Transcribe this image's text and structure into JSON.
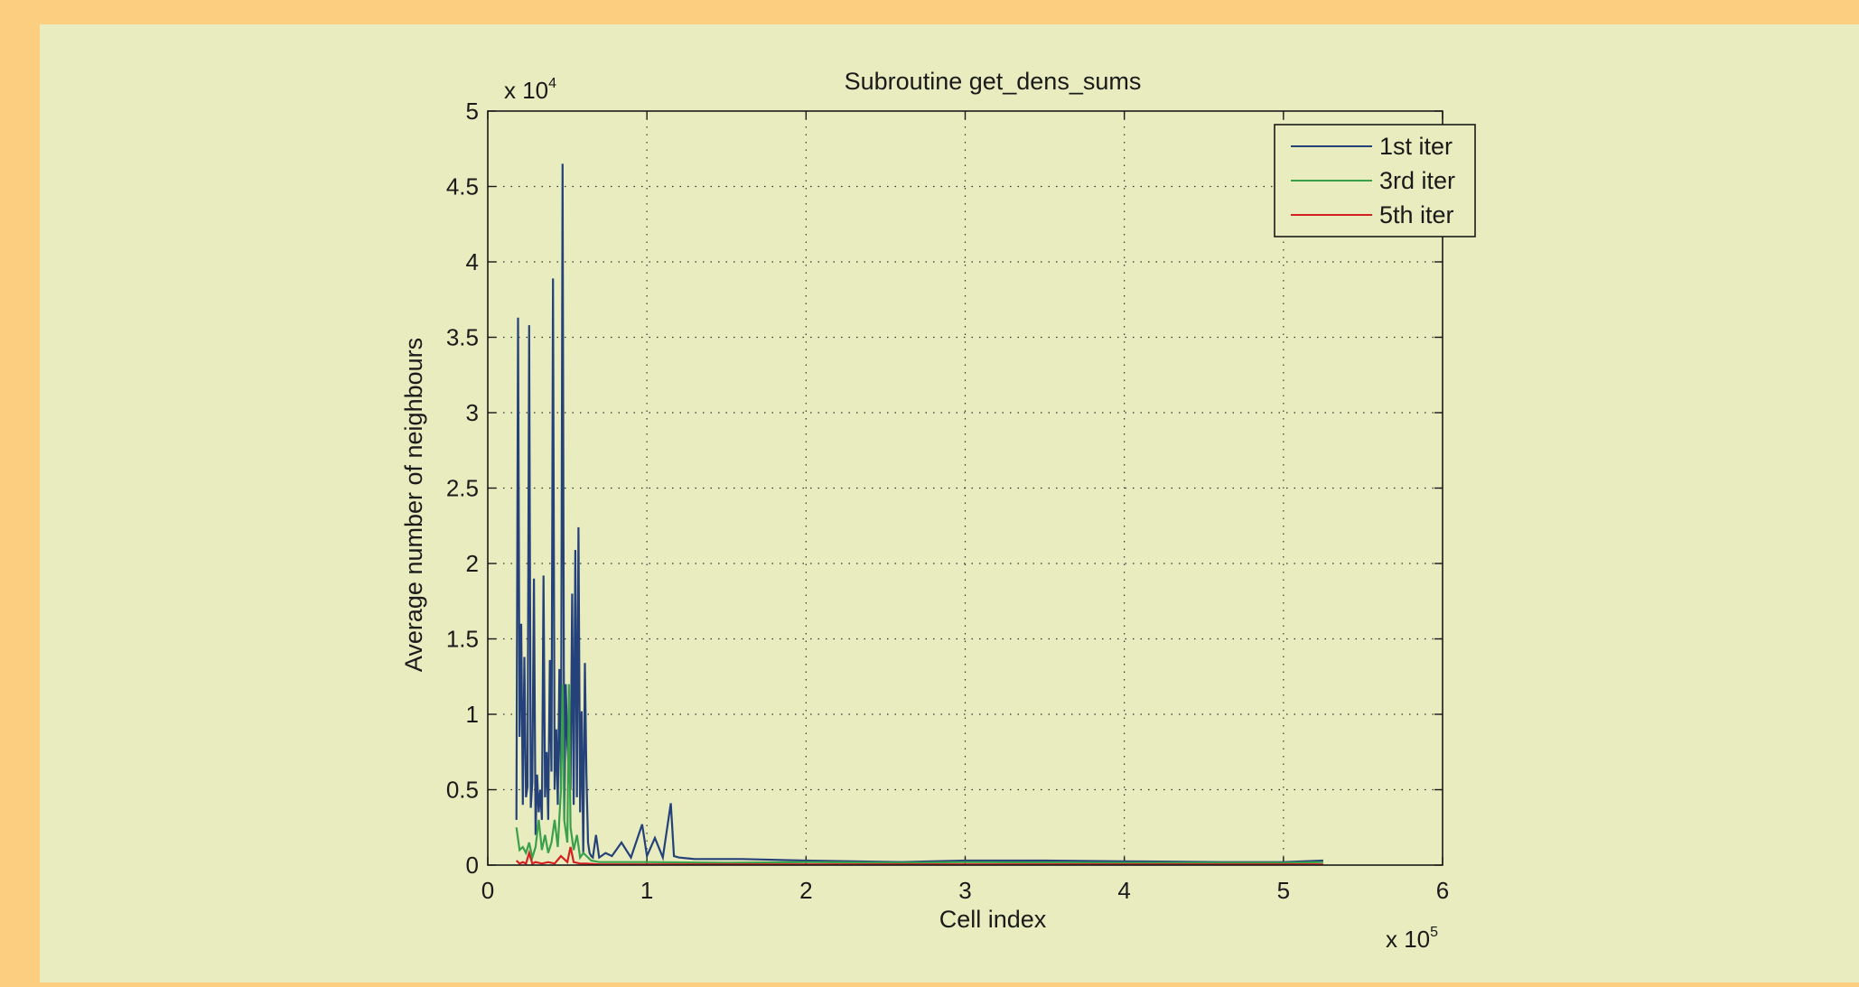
{
  "chart_data": {
    "type": "line",
    "title": "Subroutine get_dens_sums",
    "xlabel": "Cell index",
    "ylabel": "Average number of neighbours",
    "x_multiplier_label": {
      "base": "x 10",
      "exp": "5"
    },
    "y_multiplier_label": {
      "base": "x 10",
      "exp": "4"
    },
    "xlim": [
      0,
      6
    ],
    "ylim": [
      0,
      5
    ],
    "x_units_note": "x values in units of 10^5 cells, y values in units of 10^4",
    "xticks": [
      "0",
      "1",
      "2",
      "3",
      "4",
      "5",
      "6"
    ],
    "yticks": [
      "0",
      "0.5",
      "1",
      "1.5",
      "2",
      "2.5",
      "3",
      "3.5",
      "4",
      "4.5",
      "5"
    ],
    "grid": true,
    "legend_position": "top-right",
    "series": [
      {
        "name": "1st iter",
        "color": "#25417a",
        "x": [
          0.18,
          0.19,
          0.2,
          0.21,
          0.22,
          0.23,
          0.24,
          0.25,
          0.26,
          0.27,
          0.28,
          0.29,
          0.3,
          0.31,
          0.32,
          0.33,
          0.34,
          0.35,
          0.36,
          0.37,
          0.38,
          0.39,
          0.4,
          0.41,
          0.42,
          0.43,
          0.44,
          0.45,
          0.46,
          0.47,
          0.48,
          0.49,
          0.5,
          0.51,
          0.52,
          0.53,
          0.54,
          0.55,
          0.56,
          0.57,
          0.58,
          0.59,
          0.6,
          0.61,
          0.62,
          0.63,
          0.64,
          0.65,
          0.66,
          0.68,
          0.7,
          0.74,
          0.78,
          0.84,
          0.9,
          0.97,
          1.0,
          1.05,
          1.1,
          1.15,
          1.17,
          1.2,
          1.3,
          1.6,
          2.0,
          2.6,
          3.0,
          3.5,
          4.0,
          4.6,
          5.0,
          5.25
        ],
        "y": [
          0.3,
          3.63,
          0.85,
          1.6,
          0.4,
          1.38,
          0.45,
          0.52,
          3.58,
          0.38,
          0.55,
          1.9,
          0.2,
          0.6,
          0.35,
          0.5,
          0.3,
          1.92,
          0.45,
          0.75,
          0.3,
          1.36,
          0.62,
          3.89,
          0.5,
          0.9,
          0.4,
          1.3,
          0.5,
          4.65,
          0.3,
          1.2,
          0.8,
          0.6,
          0.5,
          1.8,
          0.4,
          2.09,
          0.45,
          2.24,
          0.35,
          1.02,
          0.08,
          1.34,
          0.6,
          0.15,
          0.08,
          0.06,
          0.05,
          0.2,
          0.05,
          0.08,
          0.06,
          0.15,
          0.05,
          0.27,
          0.06,
          0.18,
          0.05,
          0.41,
          0.06,
          0.05,
          0.04,
          0.04,
          0.03,
          0.02,
          0.03,
          0.03,
          0.025,
          0.02,
          0.02,
          0.03
        ]
      },
      {
        "name": "3rd iter",
        "color": "#3aa04a",
        "x": [
          0.18,
          0.2,
          0.22,
          0.24,
          0.26,
          0.28,
          0.3,
          0.32,
          0.34,
          0.36,
          0.38,
          0.4,
          0.42,
          0.44,
          0.46,
          0.47,
          0.48,
          0.5,
          0.51,
          0.52,
          0.54,
          0.56,
          0.58,
          0.6,
          0.65,
          0.7,
          1.0,
          1.5,
          2.0,
          2.6,
          3.0,
          4.0,
          5.0,
          5.25
        ],
        "y": [
          0.25,
          0.1,
          0.12,
          0.08,
          0.15,
          0.05,
          0.12,
          0.3,
          0.1,
          0.2,
          0.08,
          0.15,
          0.3,
          0.12,
          0.5,
          1.2,
          0.3,
          0.15,
          1.2,
          0.25,
          0.1,
          0.2,
          0.05,
          0.08,
          0.03,
          0.02,
          0.02,
          0.015,
          0.02,
          0.015,
          0.02,
          0.015,
          0.015,
          0.02
        ]
      },
      {
        "name": "5th iter",
        "color": "#d42020",
        "x": [
          0.18,
          0.2,
          0.22,
          0.24,
          0.26,
          0.28,
          0.3,
          0.34,
          0.38,
          0.42,
          0.46,
          0.5,
          0.52,
          0.54,
          0.58,
          0.62,
          0.7,
          1.0,
          2.0,
          3.0,
          4.0,
          5.0,
          5.25
        ],
        "y": [
          0.03,
          0.01,
          0.02,
          0.01,
          0.08,
          0.01,
          0.02,
          0.01,
          0.02,
          0.01,
          0.06,
          0.02,
          0.12,
          0.02,
          0.01,
          0.01,
          0.005,
          0.005,
          0.005,
          0.005,
          0.005,
          0.005,
          0.005
        ]
      }
    ]
  }
}
